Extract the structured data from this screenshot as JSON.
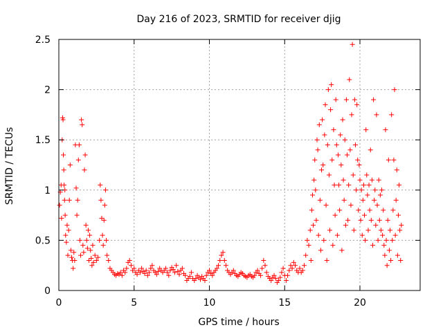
{
  "chart_data": {
    "type": "scatter",
    "title": "Day 216 of 2023, SRMTID for receiver djig",
    "xlabel": "GPS time / hours",
    "ylabel": "SRMTID / TECUs",
    "xlim": [
      0,
      24
    ],
    "ylim": [
      0,
      2.5
    ],
    "x_ticks": [
      0,
      5,
      10,
      15,
      20
    ],
    "x_tick_labels": [
      "0",
      "5",
      "10",
      "15",
      "20"
    ],
    "y_ticks": [
      0,
      0.5,
      1,
      1.5,
      2,
      2.5
    ],
    "y_tick_labels": [
      "0",
      "0.5",
      "1",
      "1.5",
      "2",
      "2.5"
    ],
    "grid": true,
    "marker": "+",
    "colors": {
      "series": "#ff0000",
      "grid": "#a0a0a0",
      "axis": "#000000"
    },
    "series": [
      {
        "name": "SRMTID",
        "points": [
          [
            0.05,
            0.85
          ],
          [
            0.1,
            0.98
          ],
          [
            0.15,
            1.05
          ],
          [
            0.18,
            0.72
          ],
          [
            0.22,
            1.5
          ],
          [
            0.25,
            1.72
          ],
          [
            0.28,
            1.7
          ],
          [
            0.3,
            1.35
          ],
          [
            0.33,
            1.2
          ],
          [
            0.35,
            1.05
          ],
          [
            0.38,
            0.9
          ],
          [
            0.4,
            1.0
          ],
          [
            0.42,
            0.75
          ],
          [
            0.45,
            0.55
          ],
          [
            0.5,
            0.48
          ],
          [
            0.55,
            0.65
          ],
          [
            0.6,
            0.35
          ],
          [
            0.65,
            0.6
          ],
          [
            0.7,
            0.9
          ],
          [
            0.75,
            1.25
          ],
          [
            0.8,
            0.4
          ],
          [
            0.85,
            0.33
          ],
          [
            0.9,
            0.3
          ],
          [
            0.95,
            0.22
          ],
          [
            1.0,
            0.38
          ],
          [
            1.05,
            0.3
          ],
          [
            1.1,
            1.45
          ],
          [
            1.15,
            1.02
          ],
          [
            1.2,
            0.75
          ],
          [
            1.25,
            0.9
          ],
          [
            1.3,
            1.3
          ],
          [
            1.35,
            1.45
          ],
          [
            1.4,
            0.5
          ],
          [
            1.45,
            0.35
          ],
          [
            1.5,
            1.7
          ],
          [
            1.55,
            1.65
          ],
          [
            1.6,
            0.45
          ],
          [
            1.65,
            0.38
          ],
          [
            1.7,
            1.2
          ],
          [
            1.75,
            1.35
          ],
          [
            1.8,
            0.65
          ],
          [
            1.85,
            0.5
          ],
          [
            1.9,
            0.42
          ],
          [
            1.95,
            0.6
          ],
          [
            2.0,
            0.3
          ],
          [
            2.05,
            0.55
          ],
          [
            2.1,
            0.4
          ],
          [
            2.15,
            0.32
          ],
          [
            2.2,
            0.25
          ],
          [
            2.25,
            0.45
          ],
          [
            2.3,
            0.28
          ],
          [
            2.4,
            0.35
          ],
          [
            2.5,
            0.3
          ],
          [
            2.6,
            0.33
          ],
          [
            2.7,
            0.5
          ],
          [
            2.75,
            1.05
          ],
          [
            2.8,
            0.9
          ],
          [
            2.85,
            0.72
          ],
          [
            2.9,
            0.55
          ],
          [
            2.95,
            0.45
          ],
          [
            3.0,
            0.7
          ],
          [
            3.05,
            0.85
          ],
          [
            3.1,
            1.0
          ],
          [
            3.15,
            0.5
          ],
          [
            3.2,
            0.35
          ],
          [
            3.3,
            0.3
          ],
          [
            3.4,
            0.22
          ],
          [
            3.5,
            0.2
          ],
          [
            3.6,
            0.18
          ],
          [
            3.7,
            0.16
          ],
          [
            3.8,
            0.15
          ],
          [
            3.9,
            0.17
          ],
          [
            4.0,
            0.16
          ],
          [
            4.1,
            0.18
          ],
          [
            4.2,
            0.15
          ],
          [
            4.3,
            0.2
          ],
          [
            4.4,
            0.18
          ],
          [
            4.5,
            0.22
          ],
          [
            4.6,
            0.28
          ],
          [
            4.7,
            0.3
          ],
          [
            4.8,
            0.25
          ],
          [
            4.9,
            0.2
          ],
          [
            5.0,
            0.22
          ],
          [
            5.1,
            0.18
          ],
          [
            5.2,
            0.16
          ],
          [
            5.3,
            0.2
          ],
          [
            5.4,
            0.18
          ],
          [
            5.5,
            0.22
          ],
          [
            5.6,
            0.19
          ],
          [
            5.7,
            0.17
          ],
          [
            5.8,
            0.2
          ],
          [
            5.9,
            0.15
          ],
          [
            6.0,
            0.18
          ],
          [
            6.1,
            0.22
          ],
          [
            6.2,
            0.25
          ],
          [
            6.3,
            0.2
          ],
          [
            6.4,
            0.18
          ],
          [
            6.5,
            0.16
          ],
          [
            6.6,
            0.19
          ],
          [
            6.7,
            0.22
          ],
          [
            6.8,
            0.2
          ],
          [
            6.9,
            0.18
          ],
          [
            7.0,
            0.2
          ],
          [
            7.1,
            0.22
          ],
          [
            7.2,
            0.18
          ],
          [
            7.3,
            0.15
          ],
          [
            7.4,
            0.2
          ],
          [
            7.5,
            0.23
          ],
          [
            7.6,
            0.21
          ],
          [
            7.7,
            0.18
          ],
          [
            7.8,
            0.25
          ],
          [
            7.9,
            0.19
          ],
          [
            8.0,
            0.16
          ],
          [
            8.1,
            0.2
          ],
          [
            8.2,
            0.22
          ],
          [
            8.3,
            0.17
          ],
          [
            8.4,
            0.15
          ],
          [
            8.5,
            0.1
          ],
          [
            8.6,
            0.12
          ],
          [
            8.7,
            0.14
          ],
          [
            8.8,
            0.18
          ],
          [
            8.9,
            0.12
          ],
          [
            9.0,
            0.1
          ],
          [
            9.1,
            0.12
          ],
          [
            9.2,
            0.15
          ],
          [
            9.3,
            0.13
          ],
          [
            9.4,
            0.11
          ],
          [
            9.5,
            0.14
          ],
          [
            9.6,
            0.12
          ],
          [
            9.7,
            0.1
          ],
          [
            9.8,
            0.15
          ],
          [
            9.9,
            0.18
          ],
          [
            10.0,
            0.2
          ],
          [
            10.1,
            0.17
          ],
          [
            10.2,
            0.15
          ],
          [
            10.3,
            0.18
          ],
          [
            10.4,
            0.2
          ],
          [
            10.5,
            0.22
          ],
          [
            10.6,
            0.25
          ],
          [
            10.7,
            0.3
          ],
          [
            10.8,
            0.35
          ],
          [
            10.9,
            0.38
          ],
          [
            11.0,
            0.3
          ],
          [
            11.1,
            0.25
          ],
          [
            11.2,
            0.2
          ],
          [
            11.3,
            0.18
          ],
          [
            11.4,
            0.16
          ],
          [
            11.5,
            0.18
          ],
          [
            11.6,
            0.2
          ],
          [
            11.7,
            0.17
          ],
          [
            11.8,
            0.15
          ],
          [
            11.9,
            0.14
          ],
          [
            12.0,
            0.16
          ],
          [
            12.1,
            0.18
          ],
          [
            12.2,
            0.17
          ],
          [
            12.3,
            0.15
          ],
          [
            12.4,
            0.14
          ],
          [
            12.5,
            0.13
          ],
          [
            12.6,
            0.15
          ],
          [
            12.7,
            0.16
          ],
          [
            12.8,
            0.14
          ],
          [
            12.9,
            0.13
          ],
          [
            13.0,
            0.15
          ],
          [
            13.1,
            0.18
          ],
          [
            13.2,
            0.2
          ],
          [
            13.3,
            0.17
          ],
          [
            13.4,
            0.15
          ],
          [
            13.5,
            0.22
          ],
          [
            13.6,
            0.3
          ],
          [
            13.7,
            0.25
          ],
          [
            13.8,
            0.18
          ],
          [
            13.9,
            0.14
          ],
          [
            14.0,
            0.12
          ],
          [
            14.1,
            0.1
          ],
          [
            14.2,
            0.13
          ],
          [
            14.3,
            0.15
          ],
          [
            14.4,
            0.12
          ],
          [
            14.5,
            0.08
          ],
          [
            14.6,
            0.1
          ],
          [
            14.7,
            0.13
          ],
          [
            14.8,
            0.18
          ],
          [
            14.9,
            0.22
          ],
          [
            15.0,
            0.15
          ],
          [
            15.1,
            0.1
          ],
          [
            15.2,
            0.15
          ],
          [
            15.3,
            0.2
          ],
          [
            15.4,
            0.25
          ],
          [
            15.5,
            0.22
          ],
          [
            15.6,
            0.28
          ],
          [
            15.7,
            0.25
          ],
          [
            15.8,
            0.2
          ],
          [
            15.9,
            0.18
          ],
          [
            16.0,
            0.22
          ],
          [
            16.1,
            0.18
          ],
          [
            16.2,
            0.2
          ],
          [
            16.3,
            0.25
          ],
          [
            16.4,
            0.35
          ],
          [
            16.5,
            0.5
          ],
          [
            16.6,
            0.45
          ],
          [
            16.7,
            0.6
          ],
          [
            16.75,
            0.3
          ],
          [
            16.8,
            0.8
          ],
          [
            16.85,
            0.95
          ],
          [
            16.9,
            0.65
          ],
          [
            16.95,
            1.1
          ],
          [
            17.0,
            1.3
          ],
          [
            17.05,
            1.0
          ],
          [
            17.1,
            0.7
          ],
          [
            17.15,
            1.5
          ],
          [
            17.2,
            1.4
          ],
          [
            17.25,
            0.55
          ],
          [
            17.3,
            1.65
          ],
          [
            17.35,
            0.9
          ],
          [
            17.4,
            0.4
          ],
          [
            17.45,
            1.2
          ],
          [
            17.5,
            1.7
          ],
          [
            17.55,
            1.25
          ],
          [
            17.6,
            0.5
          ],
          [
            17.65,
            1.55
          ],
          [
            17.7,
            1.85
          ],
          [
            17.75,
            0.85
          ],
          [
            17.8,
            0.3
          ],
          [
            17.85,
            1.45
          ],
          [
            17.9,
            2.0
          ],
          [
            17.95,
            1.15
          ],
          [
            18.0,
            0.6
          ],
          [
            18.05,
            1.8
          ],
          [
            18.1,
            2.05
          ],
          [
            18.15,
            1.3
          ],
          [
            18.2,
            0.45
          ],
          [
            18.25,
            1.6
          ],
          [
            18.3,
            1.05
          ],
          [
            18.35,
            0.75
          ],
          [
            18.4,
            1.9
          ],
          [
            18.45,
            1.45
          ],
          [
            18.5,
            0.55
          ],
          [
            18.55,
            1.35
          ],
          [
            18.6,
            1.05
          ],
          [
            18.65,
            0.8
          ],
          [
            18.7,
            1.55
          ],
          [
            18.75,
            1.25
          ],
          [
            18.8,
            0.4
          ],
          [
            18.85,
            1.7
          ],
          [
            18.9,
            1.1
          ],
          [
            18.95,
            0.9
          ],
          [
            19.0,
            1.5
          ],
          [
            19.05,
            0.65
          ],
          [
            19.1,
            1.9
          ],
          [
            19.15,
            1.35
          ],
          [
            19.2,
            0.7
          ],
          [
            19.25,
            1.05
          ],
          [
            19.3,
            2.1
          ],
          [
            19.35,
            1.4
          ],
          [
            19.4,
            0.85
          ],
          [
            19.45,
            1.75
          ],
          [
            19.5,
            2.45
          ],
          [
            19.55,
            1.15
          ],
          [
            19.6,
            0.6
          ],
          [
            19.65,
            1.9
          ],
          [
            19.7,
            1.45
          ],
          [
            19.75,
            1.0
          ],
          [
            19.8,
            1.85
          ],
          [
            19.85,
            1.3
          ],
          [
            19.9,
            0.8
          ],
          [
            19.95,
            1.25
          ],
          [
            20.0,
            1.1
          ],
          [
            20.05,
            0.7
          ],
          [
            20.1,
            1.0
          ],
          [
            20.15,
            0.55
          ],
          [
            20.2,
            0.9
          ],
          [
            20.25,
            1.05
          ],
          [
            20.3,
            0.75
          ],
          [
            20.35,
            0.5
          ],
          [
            20.4,
            1.6
          ],
          [
            20.45,
            1.15
          ],
          [
            20.5,
            0.95
          ],
          [
            20.55,
            0.6
          ],
          [
            20.6,
            1.05
          ],
          [
            20.65,
            0.8
          ],
          [
            20.7,
            1.4
          ],
          [
            20.75,
            0.7
          ],
          [
            20.8,
            1.1
          ],
          [
            20.85,
            0.45
          ],
          [
            20.9,
            1.9
          ],
          [
            20.95,
            0.9
          ],
          [
            21.0,
            1.0
          ],
          [
            21.05,
            0.65
          ],
          [
            21.1,
            1.75
          ],
          [
            21.15,
            0.85
          ],
          [
            21.2,
            0.5
          ],
          [
            21.25,
            1.1
          ],
          [
            21.3,
            0.7
          ],
          [
            21.35,
            0.95
          ],
          [
            21.4,
            0.6
          ],
          [
            21.45,
            1.0
          ],
          [
            21.5,
            0.55
          ],
          [
            21.55,
            0.8
          ],
          [
            21.6,
            0.45
          ],
          [
            21.65,
            0.35
          ],
          [
            21.7,
            1.6
          ],
          [
            21.75,
            0.5
          ],
          [
            21.8,
            0.25
          ],
          [
            21.85,
            0.7
          ],
          [
            21.9,
            1.3
          ],
          [
            21.95,
            0.4
          ],
          [
            22.0,
            0.6
          ],
          [
            22.05,
            0.3
          ],
          [
            22.1,
            1.75
          ],
          [
            22.15,
            0.5
          ],
          [
            22.2,
            0.8
          ],
          [
            22.25,
            1.3
          ],
          [
            22.3,
            2.0
          ],
          [
            22.35,
            0.55
          ],
          [
            22.4,
            0.9
          ],
          [
            22.45,
            1.2
          ],
          [
            22.5,
            0.35
          ],
          [
            22.55,
            0.75
          ],
          [
            22.6,
            1.05
          ],
          [
            22.65,
            0.6
          ],
          [
            22.7,
            0.3
          ],
          [
            22.75,
            0.65
          ]
        ]
      }
    ]
  }
}
